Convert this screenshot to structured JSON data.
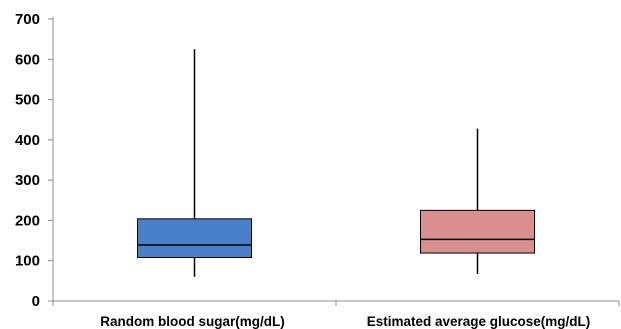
{
  "chart_data": {
    "type": "box",
    "categories": [
      "Random blood sugar(mg/dL)",
      "Estimated average glucose(mg/dL)"
    ],
    "boxes": [
      {
        "category": "Random blood sugar(mg/dL)",
        "min": 60,
        "q1": 108,
        "median": 139,
        "q3": 204,
        "max": 625,
        "color": "#4a7fc9",
        "stroke": "#2b5a96"
      },
      {
        "category": "Estimated average glucose(mg/dL)",
        "min": 67,
        "q1": 119,
        "median": 153,
        "q3": 225,
        "max": 428,
        "color": "#d98f8d",
        "stroke": "#8a4b4a"
      }
    ],
    "y_ticks": [
      0,
      100,
      200,
      300,
      400,
      500,
      600,
      700
    ],
    "ylim": [
      0,
      700
    ],
    "title": "",
    "xlabel": "",
    "ylabel": "",
    "grid": false,
    "legend": "none"
  }
}
